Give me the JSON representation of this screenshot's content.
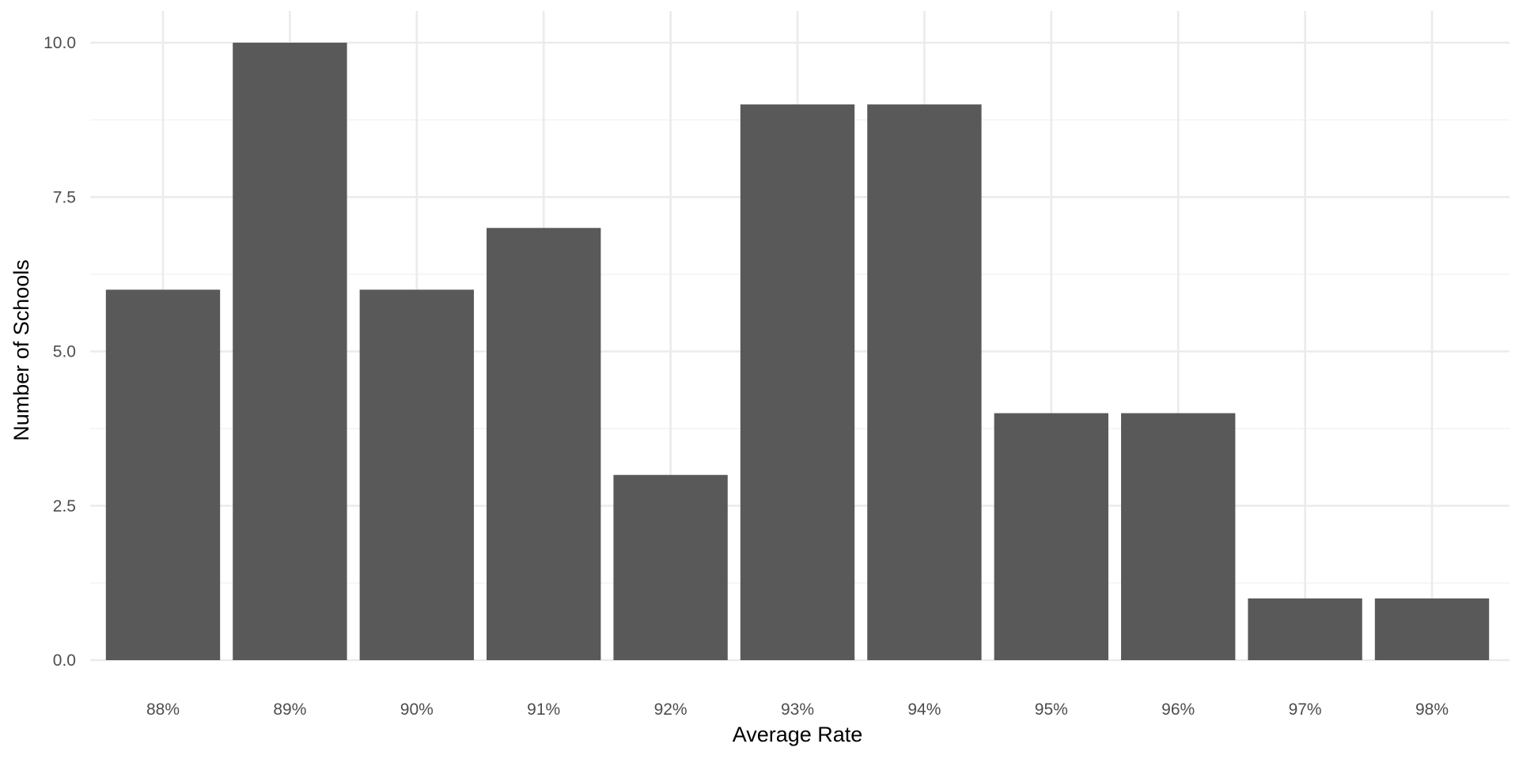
{
  "chart_data": {
    "type": "bar",
    "title": "",
    "xlabel": "Average Rate",
    "ylabel": "Number of Schools",
    "categories": [
      "88%",
      "89%",
      "90%",
      "91%",
      "92%",
      "93%",
      "94%",
      "95%",
      "96%",
      "97%",
      "98%"
    ],
    "values": [
      6,
      10,
      6,
      7,
      3,
      9,
      9,
      4,
      4,
      1,
      1
    ],
    "ylim": [
      0,
      10
    ],
    "yticks": [
      0,
      2.5,
      5,
      7.5,
      10
    ],
    "ytick_labels": [
      "0.0",
      "2.5",
      "5.0",
      "7.5",
      "10.0"
    ],
    "grid": true,
    "legend": "none",
    "bar_color": "#595959",
    "grid_color": "#ebebeb",
    "background": "#ffffff"
  }
}
